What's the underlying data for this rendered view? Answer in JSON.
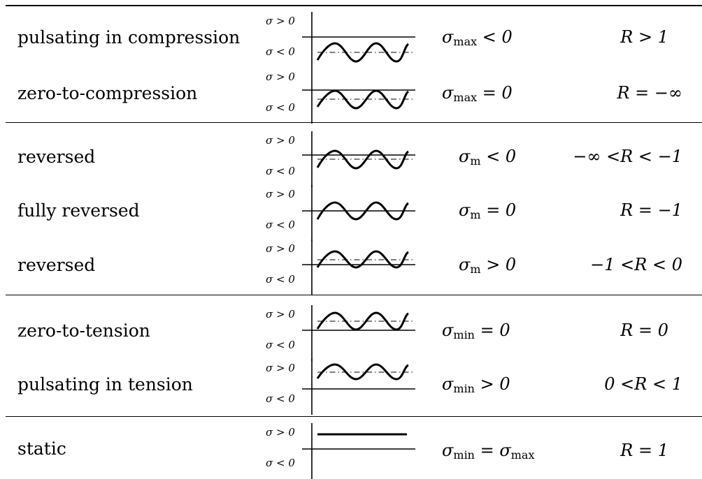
{
  "table": {
    "sigma_pos_label": "σ > 0",
    "sigma_neg_label": "σ < 0",
    "rows": [
      {
        "name": "pulsating in compression",
        "cond_var": "σ",
        "cond_sub": "max",
        "cond_rel": " < 0",
        "r_label": "R > 1",
        "axis": "upper",
        "mean": "below"
      },
      {
        "name": "zero-to-compression",
        "cond_var": "σ",
        "cond_sub": "max",
        "cond_rel": " = 0",
        "r_label": "R = −∞",
        "axis": "upper",
        "mean": "below"
      },
      {
        "name": "reversed",
        "cond_var": "σ",
        "cond_sub": "m",
        "cond_rel": " < 0",
        "r_label": "−∞ <R < −1",
        "axis": "mid",
        "mean": "below"
      },
      {
        "name": "fully reversed",
        "cond_var": "σ",
        "cond_sub": "m",
        "cond_rel": " = 0",
        "r_label": "R = −1",
        "axis": "mid",
        "mean": "on"
      },
      {
        "name": "reversed",
        "cond_var": "σ",
        "cond_sub": "m",
        "cond_rel": " > 0",
        "r_label": "−1 <R < 0",
        "axis": "mid",
        "mean": "above"
      },
      {
        "name": "zero-to-tension",
        "cond_var": "σ",
        "cond_sub": "min",
        "cond_rel": " = 0",
        "r_label": "R = 0",
        "axis": "lower",
        "mean": "above"
      },
      {
        "name": "pulsating in tension",
        "cond_var": "σ",
        "cond_sub": "min",
        "cond_rel": " > 0",
        "r_label": "0 <R < 1",
        "axis": "lower",
        "mean": "above"
      },
      {
        "name": "static",
        "cond_var": "σ",
        "cond_sub": "min",
        "cond_rel": " = σ",
        "cond_sub2": "max",
        "r_label": "R = 1",
        "axis": "lower",
        "mean": "static"
      }
    ]
  }
}
